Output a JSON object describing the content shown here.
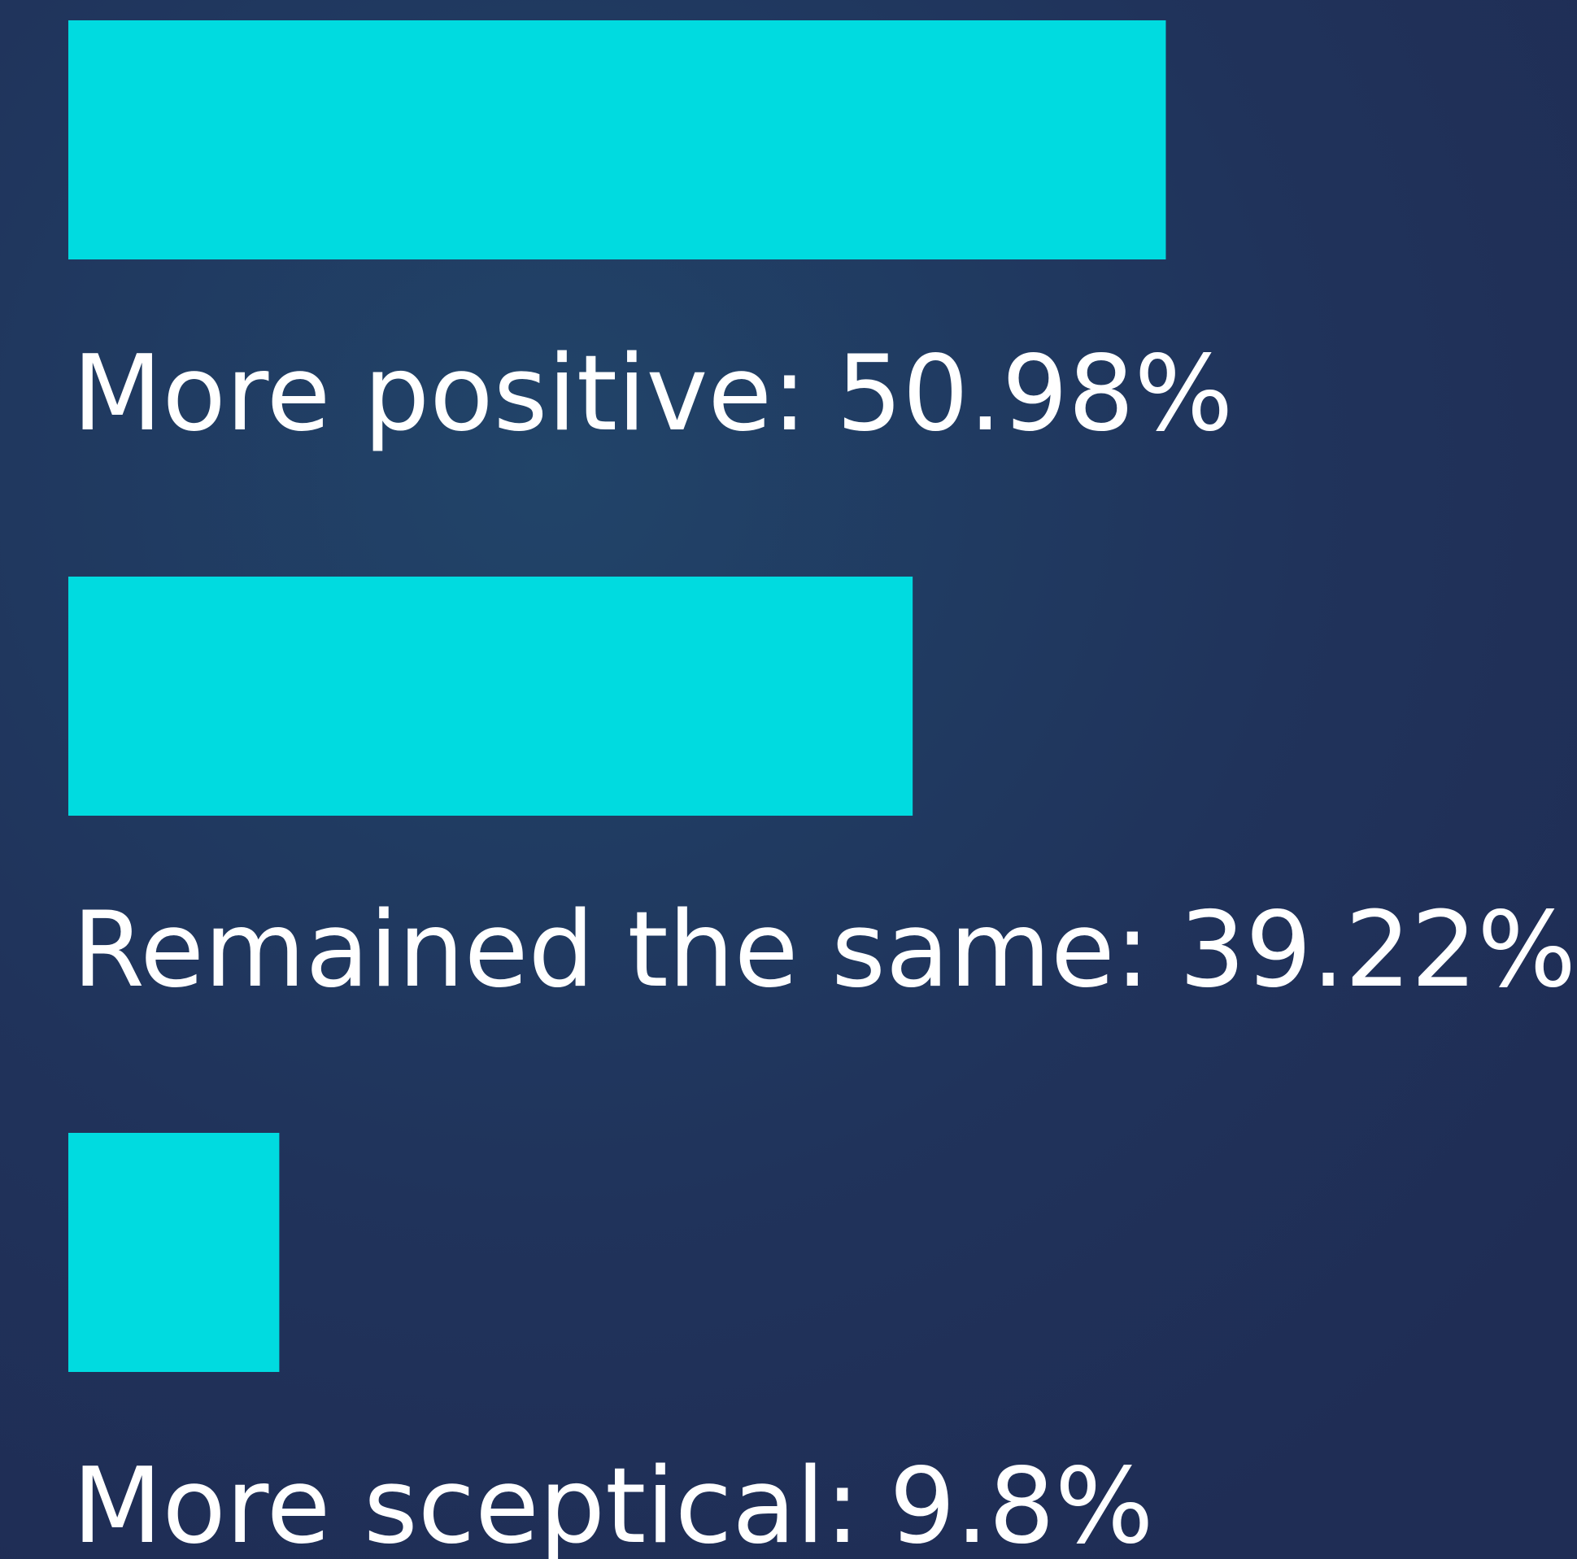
{
  "chart_data": {
    "type": "bar",
    "orientation": "horizontal",
    "categories": [
      "More positive:",
      "Remained the same:",
      "More sceptical:"
    ],
    "values": [
      50.98,
      39.22,
      9.8
    ],
    "value_labels": [
      "50.98%",
      "39.22%",
      "9.8%"
    ],
    "color": "#00dbe0"
  }
}
